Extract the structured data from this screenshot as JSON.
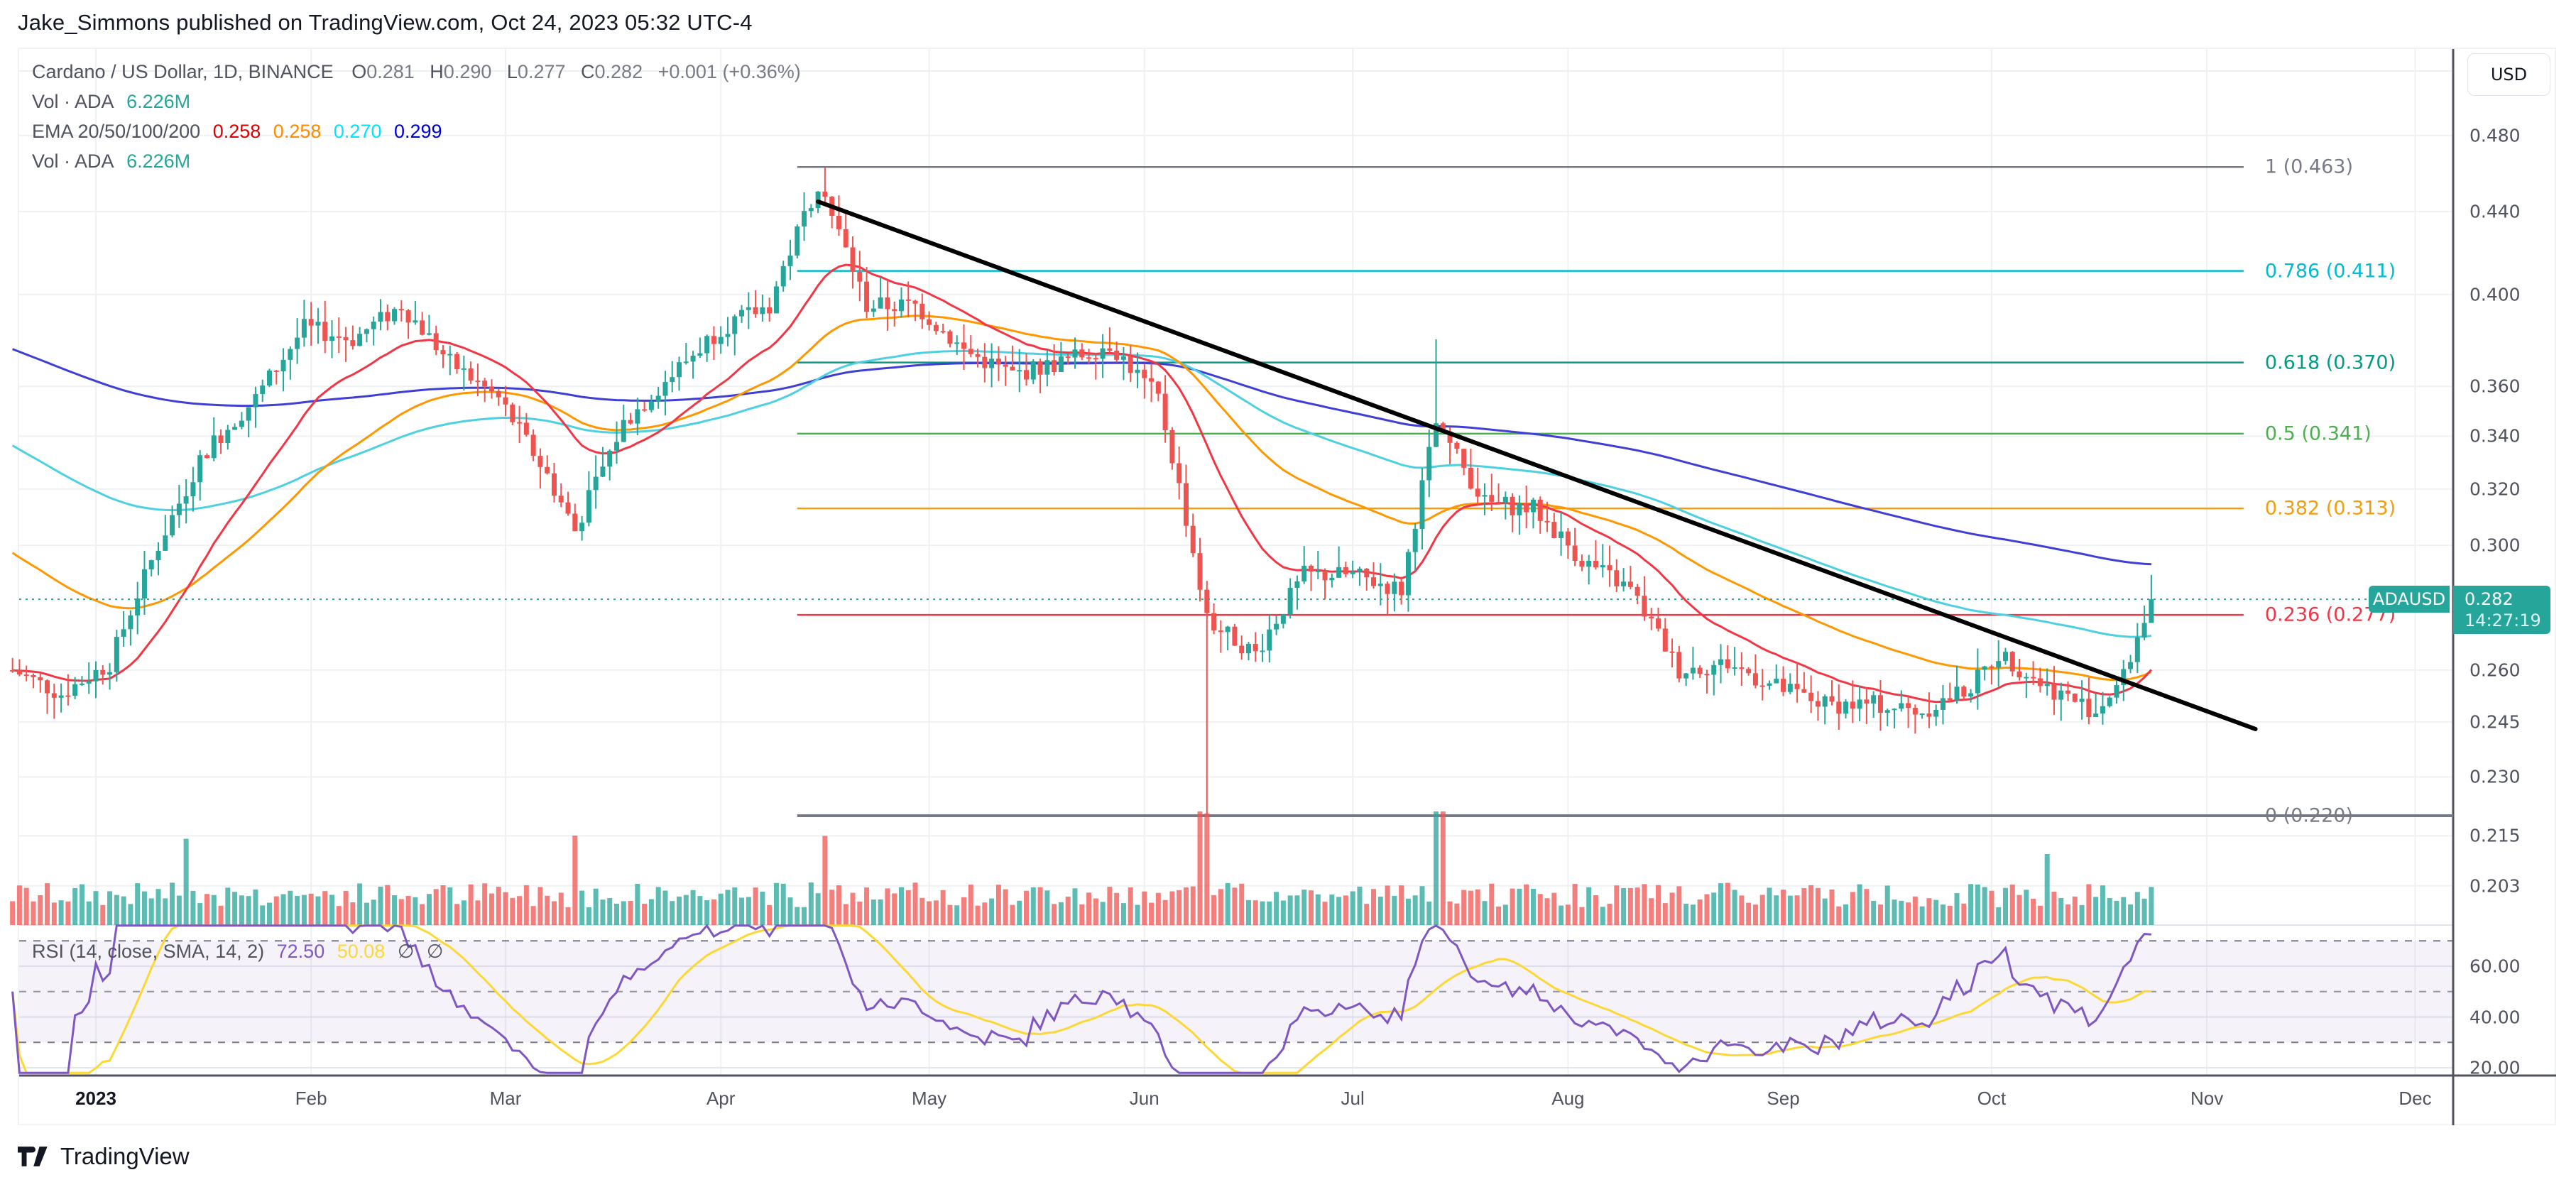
{
  "header": {
    "publisher_line": "Jake_Simmons published on TradingView.com, Oct 24, 2023 05:32 UTC-4"
  },
  "legend": {
    "symbol": "Cardano / US Dollar, 1D, BINANCE",
    "o_label": "O",
    "o_value": "0.281",
    "h_label": "H",
    "h_value": "0.290",
    "l_label": "L",
    "l_value": "0.277",
    "c_label": "C",
    "c_value": "0.282",
    "change": "+0.001 (+0.36%)",
    "vol_label": "Vol · ADA",
    "vol_value": "6.226M",
    "ema_label": "EMA 20/50/100/200",
    "ema20": "0.258",
    "ema50": "0.258",
    "ema100": "0.270",
    "ema200": "0.299",
    "vol2_label": "Vol · ADA",
    "vol2_value": "6.226M",
    "rsi_label": "RSI (14, close, SMA, 14, 2)",
    "rsi_value": "72.50",
    "rsi_sma_value": "50.08",
    "rsi_extra1": "∅",
    "rsi_extra2": "∅"
  },
  "price_axis": {
    "currency_button": "USD",
    "ticks": [
      "0.480",
      "0.440",
      "0.400",
      "0.360",
      "0.340",
      "0.320",
      "0.300",
      "0.260",
      "0.245",
      "0.230",
      "0.215",
      "0.203"
    ],
    "current_symbol": "ADAUSD",
    "current_price": "0.282",
    "countdown": "14:27:19"
  },
  "rsi_axis": {
    "ticks": [
      "60.00",
      "40.00",
      "20.00"
    ]
  },
  "time_axis": {
    "labels": [
      {
        "text": "2023",
        "bold": true
      },
      {
        "text": "Feb"
      },
      {
        "text": "Mar"
      },
      {
        "text": "Apr"
      },
      {
        "text": "May"
      },
      {
        "text": "Jun"
      },
      {
        "text": "Jul"
      },
      {
        "text": "Aug"
      },
      {
        "text": "Sep"
      },
      {
        "text": "Oct"
      },
      {
        "text": "Nov"
      },
      {
        "text": "Dec"
      }
    ]
  },
  "fib_levels": [
    {
      "label": "1 (0.463)",
      "ratio": 1,
      "price": 0.463,
      "color": "#787b86"
    },
    {
      "label": "0.786 (0.411)",
      "ratio": 0.786,
      "price": 0.411,
      "color": "#00bcd4"
    },
    {
      "label": "0.618 (0.370)",
      "ratio": 0.618,
      "price": 0.37,
      "color": "#089981"
    },
    {
      "label": "0.5 (0.341)",
      "ratio": 0.5,
      "price": 0.341,
      "color": "#4caf50"
    },
    {
      "label": "0.382 (0.313)",
      "ratio": 0.382,
      "price": 0.313,
      "color": "#f59d0b"
    },
    {
      "label": "0.236 (0.277)",
      "ratio": 0.236,
      "price": 0.277,
      "color": "#f23645"
    },
    {
      "label": "0 (0.220)",
      "ratio": 0,
      "price": 0.22,
      "color": "#787b86"
    }
  ],
  "colors": {
    "up": "#26a69a",
    "down": "#ef5350",
    "up_vol": "#26a69a",
    "down_vol": "#ef5350",
    "ema20": "#f23645",
    "ema50": "#ff9800",
    "ema100": "#4dd0e1",
    "ema200": "#3f3fd6",
    "rsi": "#7e57c2",
    "rsi_sma": "#fdd835",
    "trendline": "#000000"
  },
  "footer": {
    "brand": "TradingView"
  },
  "chart_data": {
    "type": "candlestick",
    "title": "Cardano / US Dollar, 1D, BINANCE",
    "xlabel": "",
    "ylabel": "USD",
    "scale": "log",
    "ylim": [
      0.195,
      0.49
    ],
    "x_ticks": [
      "2023",
      "Feb",
      "Mar",
      "Apr",
      "May",
      "Jun",
      "Jul",
      "Aug",
      "Sep",
      "Oct",
      "Nov",
      "Dec"
    ],
    "y_ticks": [
      0.48,
      0.44,
      0.4,
      0.36,
      0.34,
      0.32,
      0.3,
      0.26,
      0.245,
      0.23,
      0.215,
      0.203
    ],
    "last_bar": {
      "date": "2023-10-24",
      "open": 0.281,
      "high": 0.29,
      "low": 0.277,
      "close": 0.282,
      "change": 0.001,
      "change_pct": 0.36
    },
    "weekly_closes": {
      "x": [
        "2022-12-20",
        "2022-12-27",
        "2023-01-03",
        "2023-01-10",
        "2023-01-17",
        "2023-01-24",
        "2023-01-31",
        "2023-02-07",
        "2023-02-14",
        "2023-02-21",
        "2023-02-28",
        "2023-03-07",
        "2023-03-11",
        "2023-03-18",
        "2023-03-25",
        "2023-04-01",
        "2023-04-08",
        "2023-04-15",
        "2023-04-22",
        "2023-04-29",
        "2023-05-06",
        "2023-05-13",
        "2023-05-20",
        "2023-05-27",
        "2023-06-03",
        "2023-06-10",
        "2023-06-17",
        "2023-06-24",
        "2023-07-01",
        "2023-07-08",
        "2023-07-13",
        "2023-07-20",
        "2023-07-27",
        "2023-08-03",
        "2023-08-10",
        "2023-08-17",
        "2023-08-24",
        "2023-08-31",
        "2023-09-07",
        "2023-09-14",
        "2023-09-21",
        "2023-09-28",
        "2023-10-02",
        "2023-10-09",
        "2023-10-16",
        "2023-10-20",
        "2023-10-24"
      ],
      "values": [
        0.26,
        0.253,
        0.262,
        0.3,
        0.335,
        0.355,
        0.385,
        0.38,
        0.395,
        0.37,
        0.355,
        0.325,
        0.305,
        0.345,
        0.365,
        0.385,
        0.395,
        0.455,
        0.395,
        0.395,
        0.375,
        0.365,
        0.37,
        0.378,
        0.355,
        0.275,
        0.265,
        0.29,
        0.29,
        0.285,
        0.345,
        0.315,
        0.313,
        0.295,
        0.285,
        0.26,
        0.262,
        0.255,
        0.25,
        0.25,
        0.248,
        0.255,
        0.265,
        0.255,
        0.248,
        0.258,
        0.282
      ]
    },
    "ema_last": {
      "ema20": 0.258,
      "ema50": 0.258,
      "ema100": 0.27,
      "ema200": 0.299
    },
    "fibonacci": {
      "high": 0.463,
      "low": 0.22,
      "levels": [
        [
          1,
          0.463
        ],
        [
          0.786,
          0.411
        ],
        [
          0.618,
          0.37
        ],
        [
          0.5,
          0.341
        ],
        [
          0.382,
          0.313
        ],
        [
          0.236,
          0.277
        ],
        [
          0,
          0.22
        ]
      ]
    },
    "trendline": {
      "start": {
        "date": "2023-04-15",
        "price": 0.445
      },
      "end": {
        "date": "2023-11-08",
        "price": 0.243
      },
      "note": "descending resistance line, broken in Oct 2023"
    },
    "volume_last": "6.226M",
    "rsi": {
      "period": 14,
      "last": 72.5,
      "sma_last": 50.08,
      "bands": [
        70,
        50,
        30
      ],
      "ylim": [
        15,
        80
      ],
      "y_ticks": [
        60,
        40,
        20
      ]
    }
  }
}
